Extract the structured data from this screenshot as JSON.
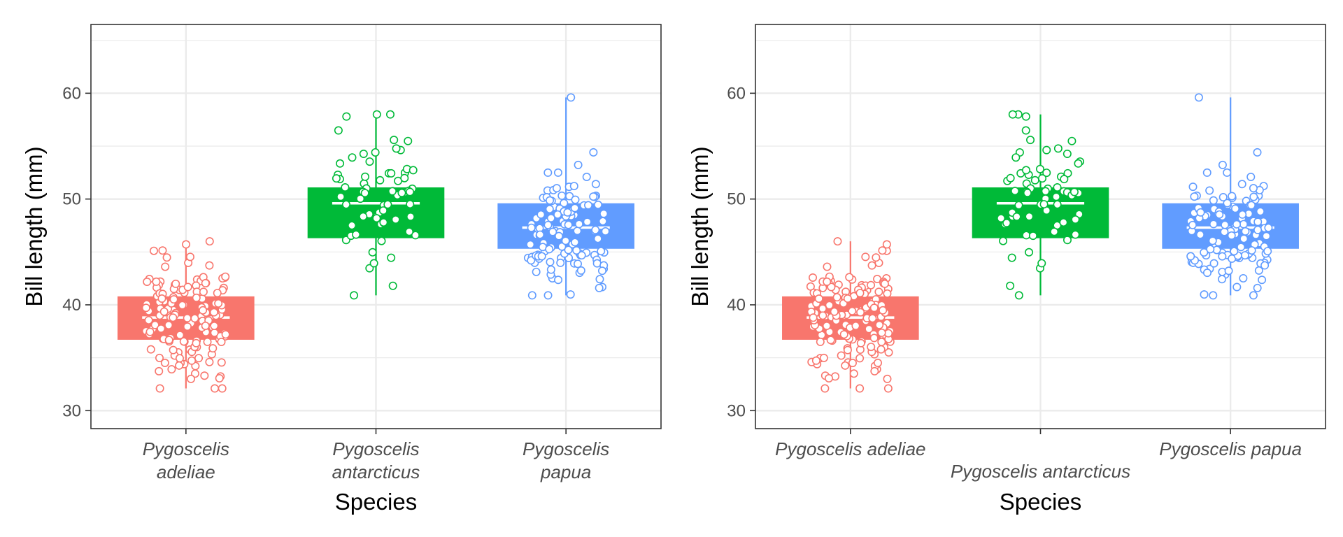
{
  "chart_data": [
    {
      "type": "box",
      "xlabel": "Species",
      "ylabel": "Bill length (mm)",
      "ylim": [
        28.3,
        66.5
      ],
      "yticks": [
        30,
        40,
        50,
        60
      ],
      "grid": true,
      "legend": "none",
      "category_label_mode": "wrapped",
      "categories": [
        {
          "label": "Pygoscelis adeliae",
          "label_lines": [
            "Pygoscelis",
            "adeliae"
          ],
          "color": "#F8766D",
          "min": 32.1,
          "q1": 36.7,
          "median": 38.8,
          "q3": 40.8,
          "max": 46.0,
          "n": 151
        },
        {
          "label": "Pygoscelis antarcticus",
          "label_lines": [
            "Pygoscelis",
            "antarcticus"
          ],
          "color": "#00BA38",
          "min": 40.9,
          "q1": 46.3,
          "median": 49.6,
          "q3": 51.1,
          "max": 58.0,
          "n": 68
        },
        {
          "label": "Pygoscelis papua",
          "label_lines": [
            "Pygoscelis",
            "papua"
          ],
          "color": "#619CFF",
          "min": 40.9,
          "q1": 45.3,
          "median": 47.3,
          "q3": 49.6,
          "max": 59.6,
          "n": 123
        }
      ]
    },
    {
      "type": "box",
      "xlabel": "Species",
      "ylabel": "Bill length (mm)",
      "ylim": [
        28.3,
        66.5
      ],
      "yticks": [
        30,
        40,
        50,
        60
      ],
      "grid": true,
      "legend": "none",
      "category_label_mode": "dodged",
      "categories": [
        {
          "label": "Pygoscelis adeliae",
          "label_lines": [
            "Pygoscelis adeliae"
          ],
          "color": "#F8766D",
          "min": 32.1,
          "q1": 36.7,
          "median": 38.8,
          "q3": 40.8,
          "max": 46.0,
          "n": 151
        },
        {
          "label": "Pygoscelis antarcticus",
          "label_lines": [
            "Pygoscelis antarcticus"
          ],
          "color": "#00BA38",
          "min": 40.9,
          "q1": 46.3,
          "median": 49.6,
          "q3": 51.1,
          "max": 58.0,
          "n": 68
        },
        {
          "label": "Pygoscelis papua",
          "label_lines": [
            "Pygoscelis papua"
          ],
          "color": "#619CFF",
          "min": 40.9,
          "q1": 45.3,
          "median": 47.3,
          "q3": 49.6,
          "max": 59.6,
          "n": 123
        }
      ]
    }
  ]
}
